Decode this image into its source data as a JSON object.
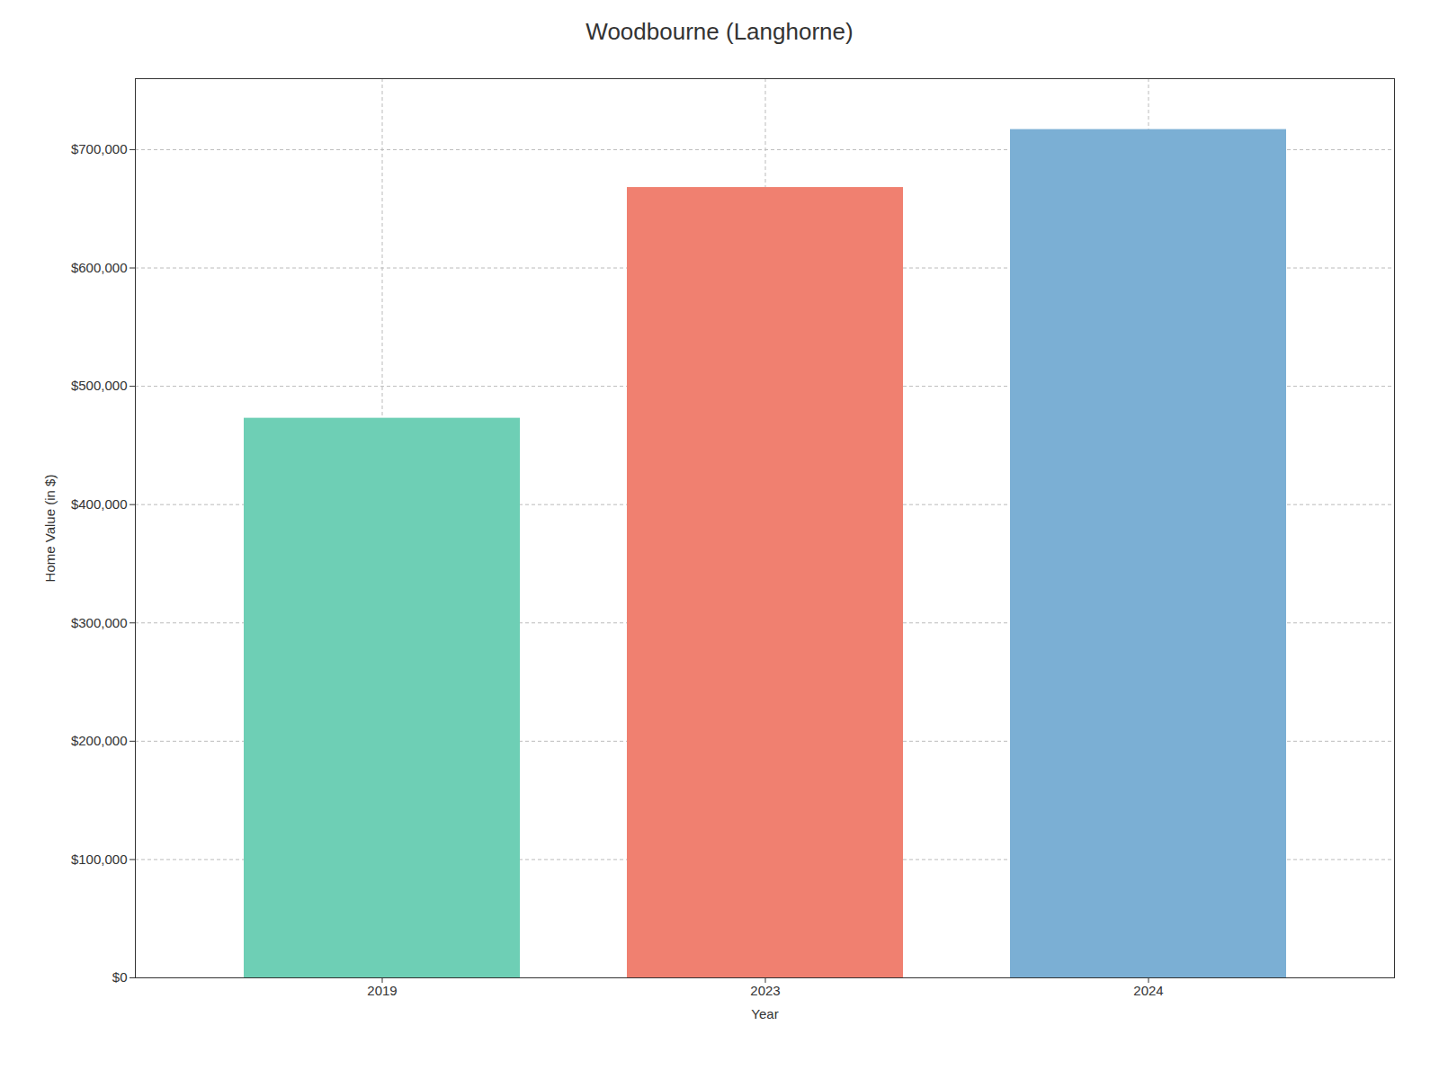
{
  "chart_data": {
    "type": "bar",
    "title": "Woodbourne (Langhorne)",
    "xlabel": "Year",
    "ylabel": "Home Value (in $)",
    "categories": [
      "2019",
      "2023",
      "2024"
    ],
    "values": [
      473000,
      668000,
      717000
    ],
    "colors": [
      "#6ecfb5",
      "#f08070",
      "#7bafd4"
    ],
    "ylim": [
      0,
      760000
    ],
    "yticks": [
      {
        "value": 0,
        "label": "$0"
      },
      {
        "value": 100000,
        "label": "$100,000"
      },
      {
        "value": 200000,
        "label": "$200,000"
      },
      {
        "value": 300000,
        "label": "$300,000"
      },
      {
        "value": 400000,
        "label": "$400,000"
      },
      {
        "value": 500000,
        "label": "$500,000"
      },
      {
        "value": 600000,
        "label": "$600,000"
      },
      {
        "value": 700000,
        "label": "$700,000"
      }
    ],
    "grid": true
  }
}
